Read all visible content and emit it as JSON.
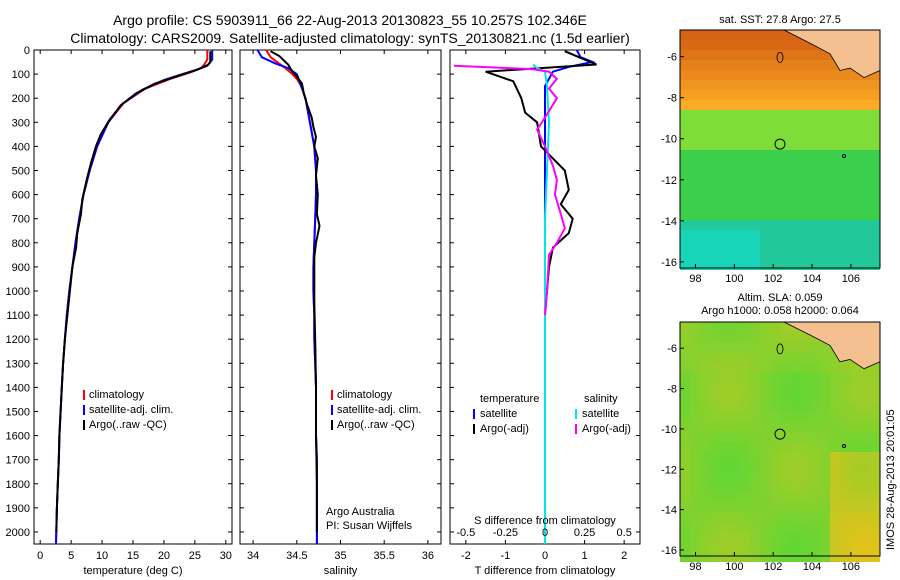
{
  "header": {
    "line1": "Argo profile: CS 5903911_66 22-Aug-2013 20130823_55 10.257S 102.346E",
    "line2": "Climatology: CARS2009. Satellite-adjusted climatology: synTS_20130821.nc (1.5d earlier)"
  },
  "depth_axis": {
    "ticks": [
      0,
      100,
      200,
      300,
      400,
      500,
      600,
      700,
      800,
      900,
      1000,
      1100,
      1200,
      1300,
      1400,
      1500,
      1600,
      1700,
      1800,
      1900,
      2000
    ],
    "range": [
      0,
      2050
    ],
    "inverted": true
  },
  "colors": {
    "climatology": "#ff0000",
    "satellite": "#0000ff",
    "argo": "#000000",
    "satellite_s": "#00e5e5",
    "argo_s_adj": "#ff00ff"
  },
  "chart_data": [
    {
      "type": "line",
      "xlabel": "temperature (deg C)",
      "xlim": [
        -1,
        31
      ],
      "xticks": [
        0,
        5,
        10,
        15,
        20,
        25,
        30
      ],
      "legend": [
        "climatology",
        "satellite-adj. clim.",
        "Argo(..raw -QC)"
      ],
      "series": [
        {
          "name": "climatology",
          "color": "#ff0000",
          "points": [
            [
              27.0,
              0
            ],
            [
              27.0,
              40
            ],
            [
              26.5,
              60
            ],
            [
              26.0,
              75
            ],
            [
              24.0,
              95
            ],
            [
              21.0,
              120
            ],
            [
              17.0,
              160
            ],
            [
              13.5,
              220
            ],
            [
              11.0,
              300
            ],
            [
              9.2,
              400
            ],
            [
              8.0,
              500
            ],
            [
              7.0,
              600
            ],
            [
              6.3,
              700
            ],
            [
              5.7,
              800
            ],
            [
              5.2,
              900
            ],
            [
              4.7,
              1000
            ],
            [
              4.3,
              1100
            ],
            [
              4.0,
              1200
            ],
            [
              3.7,
              1300
            ],
            [
              3.5,
              1400
            ],
            [
              3.3,
              1500
            ],
            [
              3.1,
              1600
            ],
            [
              3.0,
              1700
            ],
            [
              2.85,
              1800
            ],
            [
              2.7,
              1900
            ],
            [
              2.6,
              2000
            ],
            [
              2.55,
              2050
            ]
          ]
        },
        {
          "name": "satellite-adj. clim.",
          "color": "#0000ff",
          "points": [
            [
              27.8,
              0
            ],
            [
              27.8,
              40
            ],
            [
              27.2,
              60
            ],
            [
              25.5,
              80
            ],
            [
              23.0,
              100
            ],
            [
              20.0,
              125
            ],
            [
              16.5,
              165
            ],
            [
              13.2,
              225
            ],
            [
              11.0,
              300
            ],
            [
              9.2,
              400
            ],
            [
              8.0,
              500
            ],
            [
              7.0,
              600
            ],
            [
              6.3,
              700
            ],
            [
              5.7,
              800
            ],
            [
              5.2,
              900
            ],
            [
              4.7,
              1000
            ],
            [
              4.3,
              1100
            ],
            [
              4.0,
              1200
            ],
            [
              3.7,
              1300
            ],
            [
              3.5,
              1400
            ],
            [
              3.3,
              1500
            ],
            [
              3.1,
              1600
            ],
            [
              3.0,
              1700
            ],
            [
              2.85,
              1800
            ],
            [
              2.7,
              1900
            ],
            [
              2.6,
              2000
            ],
            [
              2.55,
              2050
            ]
          ]
        },
        {
          "name": "Argo(..raw -QC)",
          "color": "#000000",
          "points": [
            [
              27.5,
              5
            ],
            [
              27.5,
              50
            ],
            [
              27.0,
              65
            ],
            [
              25.0,
              85
            ],
            [
              22.0,
              110
            ],
            [
              18.5,
              140
            ],
            [
              15.5,
              180
            ],
            [
              13.0,
              230
            ],
            [
              11.2,
              290
            ],
            [
              9.8,
              350
            ],
            [
              9.0,
              400
            ],
            [
              8.2,
              470
            ],
            [
              7.5,
              540
            ],
            [
              6.8,
              620
            ],
            [
              6.6,
              680
            ],
            [
              6.0,
              760
            ],
            [
              5.8,
              820
            ],
            [
              5.2,
              900
            ],
            [
              4.8,
              1000
            ],
            [
              4.4,
              1100
            ],
            [
              4.0,
              1200
            ],
            [
              3.7,
              1300
            ],
            [
              3.5,
              1400
            ],
            [
              3.3,
              1500
            ],
            [
              3.1,
              1600
            ],
            [
              3.0,
              1700
            ],
            [
              2.85,
              1800
            ],
            [
              2.7,
              1900
            ],
            [
              2.6,
              2000
            ]
          ]
        }
      ]
    },
    {
      "type": "line",
      "xlabel": "salinity",
      "xlim": [
        33.85,
        36.15
      ],
      "xticks": [
        34,
        34.5,
        35,
        35.5,
        36
      ],
      "legend": [
        "climatology",
        "satellite-adj. clim.",
        "Argo(..raw -QC)"
      ],
      "annotation": [
        "Argo Australia",
        "PI: Susan Wijffels"
      ],
      "series": [
        {
          "name": "climatology",
          "color": "#ff0000",
          "points": [
            [
              34.15,
              0
            ],
            [
              34.2,
              30
            ],
            [
              34.35,
              70
            ],
            [
              34.45,
              100
            ],
            [
              34.5,
              120
            ],
            [
              34.55,
              150
            ],
            [
              34.6,
              200
            ],
            [
              34.65,
              300
            ],
            [
              34.7,
              400
            ],
            [
              34.72,
              500
            ],
            [
              34.72,
              600
            ],
            [
              34.71,
              700
            ],
            [
              34.7,
              800
            ],
            [
              34.69,
              900
            ],
            [
              34.69,
              1000
            ],
            [
              34.7,
              1100
            ],
            [
              34.7,
              1200
            ],
            [
              34.71,
              1300
            ],
            [
              34.72,
              1400
            ],
            [
              34.72,
              1500
            ],
            [
              34.72,
              1600
            ],
            [
              34.73,
              1700
            ],
            [
              34.73,
              1800
            ],
            [
              34.73,
              1900
            ],
            [
              34.73,
              2050
            ]
          ]
        },
        {
          "name": "satellite-adj. clim.",
          "color": "#0000ff",
          "points": [
            [
              34.05,
              0
            ],
            [
              34.1,
              30
            ],
            [
              34.25,
              55
            ],
            [
              34.4,
              75
            ],
            [
              34.5,
              100
            ],
            [
              34.55,
              150
            ],
            [
              34.6,
              200
            ],
            [
              34.65,
              300
            ],
            [
              34.7,
              400
            ],
            [
              34.72,
              500
            ],
            [
              34.72,
              600
            ],
            [
              34.71,
              700
            ],
            [
              34.7,
              800
            ],
            [
              34.69,
              900
            ],
            [
              34.69,
              1000
            ],
            [
              34.7,
              1100
            ],
            [
              34.7,
              1200
            ],
            [
              34.71,
              1300
            ],
            [
              34.72,
              1400
            ],
            [
              34.72,
              1500
            ],
            [
              34.72,
              1600
            ],
            [
              34.73,
              1700
            ],
            [
              34.73,
              1800
            ],
            [
              34.73,
              1900
            ],
            [
              34.73,
              2050
            ]
          ]
        },
        {
          "name": "Argo(..raw -QC)",
          "color": "#000000",
          "points": [
            [
              34.2,
              5
            ],
            [
              34.3,
              25
            ],
            [
              34.4,
              60
            ],
            [
              34.45,
              90
            ],
            [
              34.5,
              110
            ],
            [
              34.56,
              140
            ],
            [
              34.58,
              180
            ],
            [
              34.62,
              230
            ],
            [
              34.67,
              280
            ],
            [
              34.69,
              320
            ],
            [
              34.72,
              360
            ],
            [
              34.7,
              400
            ],
            [
              34.74,
              450
            ],
            [
              34.72,
              520
            ],
            [
              34.74,
              600
            ],
            [
              34.73,
              680
            ],
            [
              34.76,
              730
            ],
            [
              34.72,
              800
            ],
            [
              34.7,
              860
            ],
            [
              34.7,
              950
            ],
            [
              34.7,
              1050
            ],
            [
              34.71,
              1200
            ],
            [
              34.72,
              1400
            ],
            [
              34.72,
              1600
            ],
            [
              34.73,
              1800
            ],
            [
              34.73,
              2000
            ]
          ]
        }
      ]
    },
    {
      "type": "line",
      "xlabel": "T difference from climatology",
      "xlabel_top": "S difference from climatology",
      "xlim": [
        -2.4,
        2.4
      ],
      "xticks": [
        -2,
        -1,
        0,
        1,
        2
      ],
      "xticks_top": [
        "-0.5",
        "-0.25",
        "0",
        "0.25",
        "0.5"
      ],
      "legend_t": [
        "temperature",
        "satellite",
        "Argo(-adj)"
      ],
      "legend_s": [
        "salinity",
        "satellite",
        "Argo(-adj)"
      ],
      "series": [
        {
          "name": "satellite",
          "color": "#0000ff",
          "points": [
            [
              0.8,
              0
            ],
            [
              0.9,
              30
            ],
            [
              1.2,
              50
            ],
            [
              0.6,
              70
            ],
            [
              0.2,
              90
            ],
            [
              0,
              150
            ],
            [
              0,
              2050
            ]
          ]
        },
        {
          "name": "Argo(-adj)",
          "color": "#000000",
          "points": [
            [
              0.5,
              5
            ],
            [
              1.0,
              40
            ],
            [
              1.3,
              60
            ],
            [
              -1.5,
              90
            ],
            [
              -0.8,
              130
            ],
            [
              -0.6,
              200
            ],
            [
              -0.5,
              260
            ],
            [
              -0.2,
              300
            ],
            [
              -0.1,
              400
            ],
            [
              0.2,
              450
            ],
            [
              0.5,
              500
            ],
            [
              0.6,
              580
            ],
            [
              0.4,
              640
            ],
            [
              0.7,
              700
            ],
            [
              0.6,
              760
            ],
            [
              0.2,
              820
            ],
            [
              0.1,
              900
            ],
            [
              0.05,
              1000
            ],
            [
              0,
              1100
            ],
            [
              0,
              1500
            ],
            [
              0,
              2000
            ]
          ]
        },
        {
          "name": "salinity satellite",
          "color": "#00e5e5",
          "points": [
            [
              -0.3,
              60
            ],
            [
              -0.2,
              75
            ],
            [
              0,
              90
            ],
            [
              0.05,
              150
            ],
            [
              0.1,
              300
            ],
            [
              0.05,
              500
            ],
            [
              0,
              700
            ],
            [
              0,
              2050
            ]
          ]
        },
        {
          "name": "salinity Argo(-adj)",
          "color": "#ff00ff",
          "points": [
            [
              -2.3,
              65
            ],
            [
              -0.9,
              75
            ],
            [
              -0.3,
              80
            ],
            [
              0.1,
              90
            ],
            [
              0.3,
              120
            ],
            [
              0.1,
              160
            ],
            [
              0.3,
              200
            ],
            [
              0.0,
              280
            ],
            [
              -0.2,
              330
            ],
            [
              0.0,
              400
            ],
            [
              0.2,
              480
            ],
            [
              0.3,
              540
            ],
            [
              0.25,
              600
            ],
            [
              0.4,
              680
            ],
            [
              0.5,
              740
            ],
            [
              0.3,
              800
            ],
            [
              0.1,
              850
            ],
            [
              0.05,
              1000
            ],
            [
              0,
              1100
            ]
          ]
        }
      ]
    }
  ],
  "maps": {
    "lon_ticks": [
      "98",
      "100",
      "102",
      "104",
      "106"
    ],
    "lat_ticks": [
      "-6",
      "-8",
      "-10",
      "-12",
      "-14",
      "-16"
    ],
    "sst_title": "sat. SST: 27.8  Argo: 27.5",
    "sla_title_1": "Altim. SLA: 0.059",
    "sla_title_2": "Argo h1000: 0.058 h2000: 0.064"
  },
  "stamp": "IMOS 28-Aug-2013 20:01:05"
}
